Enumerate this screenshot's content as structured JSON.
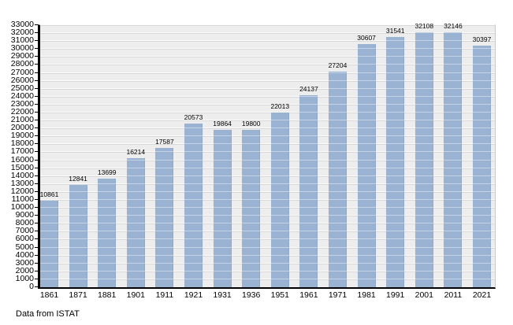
{
  "caption": "Data from ISTAT",
  "chart_data": {
    "type": "bar",
    "title": "",
    "xlabel": "",
    "ylabel": "",
    "categories": [
      "1861",
      "1871",
      "1881",
      "1901",
      "1911",
      "1921",
      "1931",
      "1936",
      "1951",
      "1961",
      "1971",
      "1981",
      "1991",
      "2001",
      "2011",
      "2021"
    ],
    "values": [
      10861,
      12841,
      13699,
      16214,
      17587,
      20573,
      19864,
      19800,
      22013,
      24137,
      27204,
      30607,
      31541,
      32108,
      32146,
      30397
    ],
    "value_labels_shown": true,
    "ylim": [
      0,
      33000
    ],
    "ytick_step": 1000,
    "grid": true,
    "legend": "none",
    "bar_color": "#9ab3d2",
    "plot_bg": "#ededed",
    "axis_color": "#000000"
  }
}
